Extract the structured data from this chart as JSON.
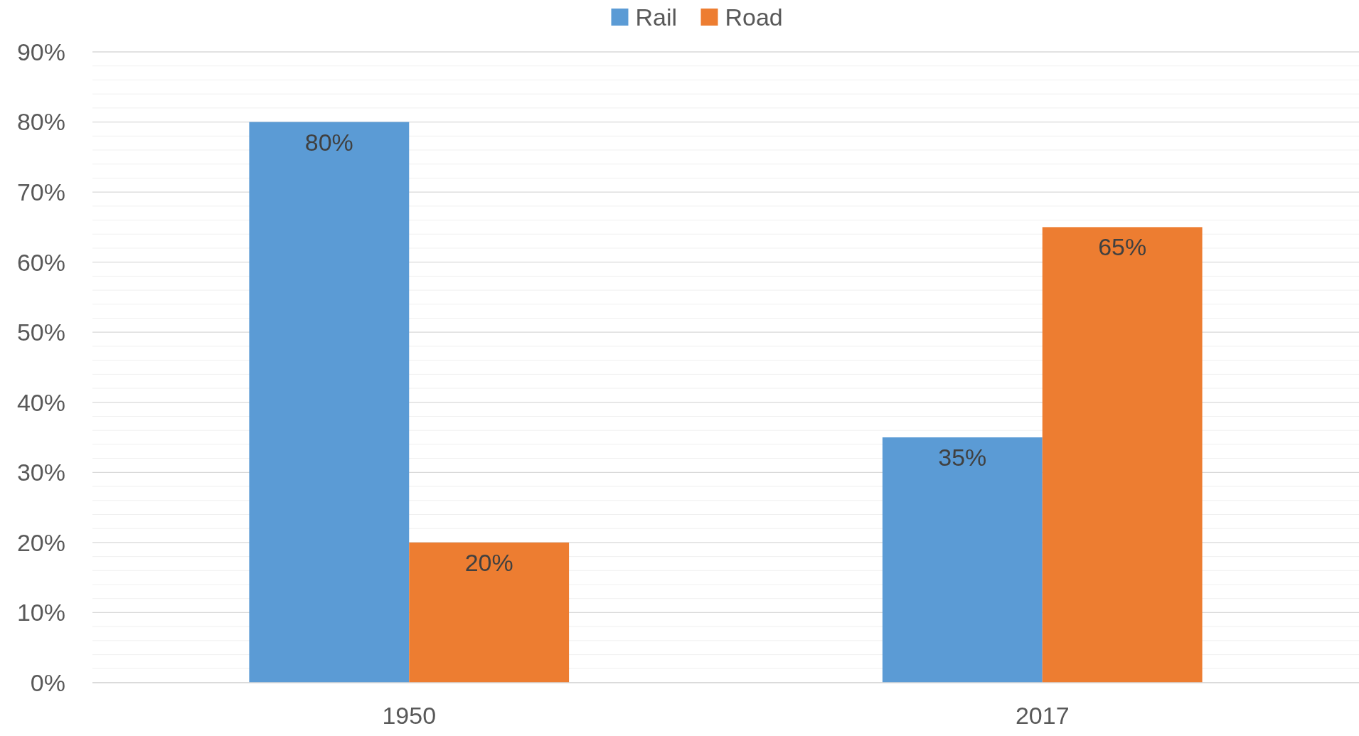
{
  "chart_data": {
    "type": "bar",
    "categories": [
      "1950",
      "2017"
    ],
    "series": [
      {
        "name": "Rail",
        "color": "#5b9bd5",
        "values": [
          80,
          35
        ],
        "value_labels": [
          "80%",
          "35%"
        ]
      },
      {
        "name": "Road",
        "color": "#ed7d31",
        "values": [
          20,
          65
        ],
        "value_labels": [
          "20%",
          "65%"
        ]
      }
    ],
    "ylim": [
      0,
      90
    ],
    "yticks": [
      {
        "value": 0,
        "label": "0%"
      },
      {
        "value": 10,
        "label": "10%"
      },
      {
        "value": 20,
        "label": "20%"
      },
      {
        "value": 30,
        "label": "30%"
      },
      {
        "value": 40,
        "label": "40%"
      },
      {
        "value": 50,
        "label": "50%"
      },
      {
        "value": 60,
        "label": "60%"
      },
      {
        "value": 70,
        "label": "70%"
      },
      {
        "value": 80,
        "label": "80%"
      },
      {
        "value": 90,
        "label": "90%"
      }
    ],
    "grid": true,
    "legend": "top"
  }
}
